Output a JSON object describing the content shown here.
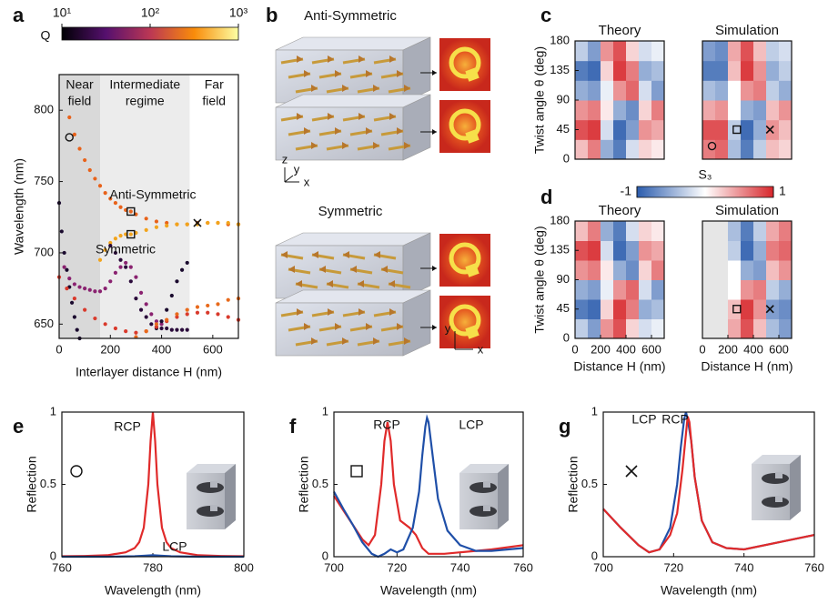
{
  "chart_data": [
    {
      "type": "scatter",
      "panel": "a",
      "xlabel": "Interlayer distance H (nm)",
      "ylabel": "Wavelength (nm)",
      "xlim": [
        0,
        700
      ],
      "xticks": [
        0,
        200,
        400,
        600
      ],
      "ylim": [
        640,
        825
      ],
      "yticks": [
        650,
        700,
        750,
        800
      ],
      "colorbar": {
        "label": "Q",
        "log": true,
        "lim": [
          10,
          1000
        ],
        "colors": [
          "#000004",
          "#56106e",
          "#bb3754",
          "#f98c0a",
          "#fcffa4"
        ],
        "ticks": [
          {
            "value": 10,
            "label": "10¹"
          },
          {
            "value": 100,
            "label": "10²"
          },
          {
            "value": 1000,
            "label": "10³"
          }
        ]
      },
      "regions": [
        {
          "label": [
            "Near",
            "field"
          ],
          "range": [
            0,
            160
          ],
          "color": "#d9d9d9"
        },
        {
          "label": [
            "Intermediate",
            "regime"
          ],
          "range": [
            160,
            510
          ],
          "color": "#ececec"
        },
        {
          "label": [
            "Far",
            "field"
          ],
          "range": [
            510,
            700
          ],
          "color": "#ffffff"
        }
      ],
      "series": [
        {
          "name": "Anti-Symmetric",
          "color": "#e8621a",
          "x": [
            40,
            60,
            80,
            100,
            120,
            140,
            160,
            180,
            200,
            220,
            240,
            260,
            280,
            300,
            340,
            380,
            420,
            460,
            500,
            540,
            580,
            620,
            660,
            700
          ],
          "values": [
            795,
            783,
            773,
            765,
            758,
            752,
            747,
            742,
            738,
            735,
            732,
            730,
            729,
            727,
            724,
            722,
            721,
            720,
            720,
            721,
            721,
            721,
            720,
            720
          ]
        },
        {
          "name": "Symmetric",
          "color": "#f2a41c",
          "x": [
            160,
            180,
            200,
            220,
            240,
            260,
            280,
            300,
            340,
            380,
            420,
            460,
            500,
            540,
            580,
            620,
            660,
            700
          ],
          "values": [
            695,
            702,
            707,
            710,
            712,
            713,
            713,
            714,
            716,
            718,
            719,
            720,
            720,
            720,
            721,
            721,
            721,
            720
          ]
        },
        {
          "color": "#1a0a2e",
          "x": [
            0,
            10,
            20,
            30,
            40,
            50,
            60,
            70,
            80
          ],
          "values": [
            735,
            715,
            700,
            688,
            676,
            665,
            655,
            646,
            640
          ]
        },
        {
          "color": "#8a2270",
          "x": [
            20,
            40,
            60,
            80,
            100,
            120,
            140,
            160,
            180,
            200,
            220,
            240,
            260,
            280,
            300,
            320,
            340,
            360,
            380,
            400
          ],
          "values": [
            690,
            682,
            678,
            676,
            675,
            674,
            673,
            673,
            675,
            680,
            686,
            690,
            693,
            690,
            683,
            672,
            664,
            657,
            652,
            650
          ]
        },
        {
          "color": "#2a0a3a",
          "x": [
            200,
            220,
            240,
            260,
            280,
            300,
            320,
            340,
            360,
            380,
            400,
            420,
            440,
            460,
            480,
            500
          ],
          "values": [
            705,
            700,
            695,
            690,
            680,
            668,
            660,
            655,
            650,
            648,
            647,
            647,
            646,
            646,
            646,
            646
          ]
        },
        {
          "color": "#1a0a2e",
          "x": [
            380,
            400,
            420,
            440,
            460,
            480,
            500
          ],
          "values": [
            647,
            652,
            660,
            670,
            680,
            688,
            693
          ]
        },
        {
          "color": "#d93a2c",
          "x": [
            0,
            30,
            60,
            100,
            140,
            180,
            220,
            260,
            300,
            340,
            380,
            420,
            460,
            500,
            540,
            580,
            620,
            660,
            700
          ],
          "values": [
            683,
            675,
            668,
            660,
            654,
            650,
            647,
            645,
            644,
            645,
            648,
            652,
            655,
            657,
            658,
            658,
            657,
            655,
            653
          ]
        },
        {
          "color": "#e86a1c",
          "x": [
            300,
            340,
            380,
            420,
            460,
            500,
            540,
            580,
            620,
            660,
            700
          ],
          "values": [
            641,
            645,
            650,
            653,
            657,
            660,
            662,
            663,
            664,
            667,
            668
          ]
        }
      ],
      "markers": [
        {
          "shape": "circle",
          "x": 40,
          "y": 781
        },
        {
          "shape": "square",
          "x": 280,
          "y": 729
        },
        {
          "shape": "square",
          "x": 280,
          "y": 713
        },
        {
          "shape": "cross",
          "x": 540,
          "y": 721
        }
      ]
    },
    {
      "type": "heatmap",
      "panel": "c",
      "title": "Theory",
      "ylabel": "Twist angle θ (deg)",
      "xlim": [
        0,
        700
      ],
      "ylim": [
        0,
        180
      ],
      "yticks": [
        0,
        45,
        90,
        135,
        180
      ],
      "colorbar": {
        "label": "S₃",
        "lim": [
          -1,
          1
        ],
        "ticks": [
          -1,
          1
        ],
        "colors": [
          "#2b5cad",
          "#ffffff",
          "#d7262b"
        ]
      },
      "z": [
        [
          0.3,
          0.6,
          -0.5,
          -0.8,
          -0.2,
          0.2,
          0.1
        ],
        [
          0.8,
          0.9,
          -0.2,
          -0.9,
          -0.6,
          0.5,
          0.4
        ],
        [
          0.5,
          0.6,
          0.1,
          -0.5,
          -0.7,
          0.2,
          0.6
        ],
        [
          -0.5,
          -0.6,
          -0.1,
          0.5,
          0.7,
          -0.2,
          -0.6
        ],
        [
          -0.8,
          -0.9,
          0.2,
          0.9,
          0.6,
          -0.5,
          -0.4
        ],
        [
          -0.3,
          -0.6,
          0.5,
          0.8,
          0.2,
          -0.2,
          -0.1
        ]
      ]
    },
    {
      "type": "heatmap",
      "title": "Simulation",
      "xlim": [
        0,
        700
      ],
      "ylim": [
        0,
        180
      ],
      "z": [
        [
          0.6,
          0.7,
          -0.4,
          -0.8,
          -0.3,
          0.3,
          0.2
        ],
        [
          0.8,
          0.8,
          -0.3,
          -0.9,
          -0.5,
          0.5,
          0.3
        ],
        [
          0.4,
          0.5,
          0.0,
          -0.5,
          -0.6,
          0.3,
          0.5
        ],
        [
          -0.4,
          -0.5,
          0.0,
          0.5,
          0.6,
          -0.3,
          -0.5
        ],
        [
          -0.8,
          -0.8,
          0.3,
          0.9,
          0.5,
          -0.5,
          -0.3
        ],
        [
          -0.6,
          -0.7,
          0.4,
          0.8,
          0.3,
          -0.3,
          -0.2
        ]
      ],
      "markers": [
        {
          "shape": "circle",
          "x": 75,
          "y": 20
        },
        {
          "shape": "square",
          "x": 270,
          "y": 45
        },
        {
          "shape": "cross",
          "x": 530,
          "y": 45
        }
      ]
    },
    {
      "type": "heatmap",
      "panel": "d",
      "title": "Theory",
      "ylabel": "Twist angle θ (deg)",
      "xlabel": "Distance H (nm)",
      "xlim": [
        0,
        700
      ],
      "xticks": [
        0,
        200,
        400,
        600
      ],
      "ylim": [
        0,
        180
      ],
      "yticks": [
        0,
        45,
        90,
        135,
        180
      ],
      "z": [
        [
          -0.3,
          -0.6,
          0.5,
          0.8,
          0.2,
          -0.2,
          -0.1
        ],
        [
          -0.8,
          -0.9,
          0.2,
          0.9,
          0.6,
          -0.5,
          -0.4
        ],
        [
          -0.5,
          -0.6,
          -0.1,
          0.5,
          0.7,
          -0.2,
          -0.6
        ],
        [
          0.5,
          0.6,
          0.1,
          -0.5,
          -0.7,
          0.2,
          0.6
        ],
        [
          0.8,
          0.9,
          -0.2,
          -0.9,
          -0.6,
          0.5,
          0.4
        ],
        [
          0.3,
          0.6,
          -0.5,
          -0.8,
          -0.2,
          0.2,
          0.1
        ]
      ]
    },
    {
      "type": "heatmap",
      "title": "Simulation",
      "xlabel": "Distance H (nm)",
      "xlim": [
        0,
        700
      ],
      "xticks": [
        0,
        200,
        400,
        600
      ],
      "ylim": [
        0,
        180
      ],
      "z": [
        [
          null,
          null,
          0.4,
          0.8,
          0.3,
          -0.4,
          -0.6
        ],
        [
          null,
          null,
          0.3,
          0.9,
          0.5,
          -0.6,
          -0.7
        ],
        [
          null,
          null,
          0.0,
          0.5,
          0.6,
          -0.3,
          -0.5
        ],
        [
          null,
          null,
          0.0,
          -0.5,
          -0.6,
          0.3,
          0.5
        ],
        [
          null,
          null,
          -0.3,
          -0.9,
          -0.5,
          0.6,
          0.7
        ],
        [
          null,
          null,
          -0.4,
          -0.8,
          -0.3,
          0.4,
          0.6
        ]
      ],
      "markers": [
        {
          "shape": "square",
          "x": 270,
          "y": 45
        },
        {
          "shape": "cross",
          "x": 530,
          "y": 45
        }
      ]
    },
    {
      "type": "line",
      "panel": "e",
      "marker": "circle",
      "xlabel": "Wavelength (nm)",
      "ylabel": "Reflection",
      "xlim": [
        760,
        800
      ],
      "xticks": [
        760,
        780,
        800
      ],
      "ylim": [
        0,
        1
      ],
      "yticks": [
        0,
        0.5,
        1
      ],
      "series": [
        {
          "name": "RCP",
          "color": "#e02a2a",
          "x": [
            760,
            765,
            770,
            774,
            776,
            777,
            778,
            779,
            779.5,
            780,
            780.5,
            781,
            782,
            783,
            784,
            786,
            790,
            795,
            800
          ],
          "values": [
            0.003,
            0.005,
            0.01,
            0.03,
            0.06,
            0.1,
            0.2,
            0.5,
            0.8,
            1,
            0.8,
            0.5,
            0.2,
            0.1,
            0.06,
            0.03,
            0.01,
            0.005,
            0.003
          ]
        },
        {
          "name": "LCP",
          "color": "#1f4fa8",
          "x": [
            760,
            770,
            776,
            778,
            780,
            782,
            784,
            790,
            800
          ],
          "values": [
            0,
            0,
            0.003,
            0.006,
            0.01,
            0.006,
            0.003,
            0,
            0
          ]
        }
      ]
    },
    {
      "type": "line",
      "panel": "f",
      "marker": "square",
      "xlabel": "Wavelength (nm)",
      "ylabel": "Reflection",
      "xlim": [
        700,
        760
      ],
      "xticks": [
        700,
        720,
        740,
        760
      ],
      "ylim": [
        0,
        1
      ],
      "yticks": [
        0,
        0.5,
        1
      ],
      "series": [
        {
          "name": "RCP",
          "color": "#e02a2a",
          "x": [
            700,
            703,
            706,
            709,
            711,
            713,
            715,
            716,
            717,
            718,
            719,
            721,
            724,
            726,
            728,
            730,
            735,
            740,
            750,
            760
          ],
          "values": [
            0.42,
            0.32,
            0.22,
            0.12,
            0.08,
            0.15,
            0.5,
            0.8,
            0.93,
            0.8,
            0.5,
            0.25,
            0.2,
            0.15,
            0.06,
            0.02,
            0.02,
            0.03,
            0.05,
            0.08
          ]
        },
        {
          "name": "LCP",
          "color": "#1f4fa8",
          "x": [
            700,
            703,
            706,
            709,
            712,
            714,
            716,
            718,
            720,
            722,
            725,
            727,
            728,
            729,
            729.5,
            730,
            731,
            733,
            736,
            740,
            745,
            750,
            760
          ],
          "values": [
            0.45,
            0.33,
            0.22,
            0.1,
            0.02,
            0,
            0.02,
            0.05,
            0.03,
            0.05,
            0.2,
            0.45,
            0.7,
            0.9,
            0.96,
            0.93,
            0.75,
            0.4,
            0.18,
            0.08,
            0.04,
            0.04,
            0.06
          ]
        }
      ]
    },
    {
      "type": "line",
      "panel": "g",
      "marker": "cross",
      "xlabel": "Wavelength (nm)",
      "ylabel": "Reflection",
      "xlim": [
        700,
        760
      ],
      "xticks": [
        700,
        720,
        740,
        760
      ],
      "ylim": [
        0,
        1
      ],
      "yticks": [
        0,
        0.5,
        1
      ],
      "series": [
        {
          "name": "LCP",
          "color": "#1f4fa8",
          "x": [
            700,
            705,
            710,
            713,
            716,
            719,
            721,
            722,
            723,
            723.5,
            724,
            725,
            726,
            728,
            731,
            735,
            740,
            750,
            760
          ],
          "values": [
            0.33,
            0.2,
            0.08,
            0.03,
            0.05,
            0.2,
            0.5,
            0.75,
            0.95,
            1,
            0.95,
            0.8,
            0.55,
            0.25,
            0.1,
            0.06,
            0.05,
            0.1,
            0.15
          ]
        },
        {
          "name": "RCP",
          "color": "#e02a2a",
          "x": [
            700,
            705,
            710,
            713,
            716,
            719,
            721,
            722.5,
            723.5,
            724,
            724.5,
            725,
            726,
            728,
            731,
            735,
            740,
            750,
            760
          ],
          "values": [
            0.33,
            0.2,
            0.08,
            0.03,
            0.05,
            0.15,
            0.3,
            0.6,
            0.85,
            0.97,
            0.93,
            0.8,
            0.55,
            0.25,
            0.1,
            0.06,
            0.05,
            0.1,
            0.15
          ]
        }
      ]
    }
  ],
  "illustration": {
    "panel": "b",
    "sections": [
      {
        "title": "Anti-Symmetric",
        "axes": [
          "z",
          "y",
          "x"
        ]
      },
      {
        "title": "Symmetric",
        "axes": [
          "y",
          "x"
        ]
      }
    ]
  }
}
